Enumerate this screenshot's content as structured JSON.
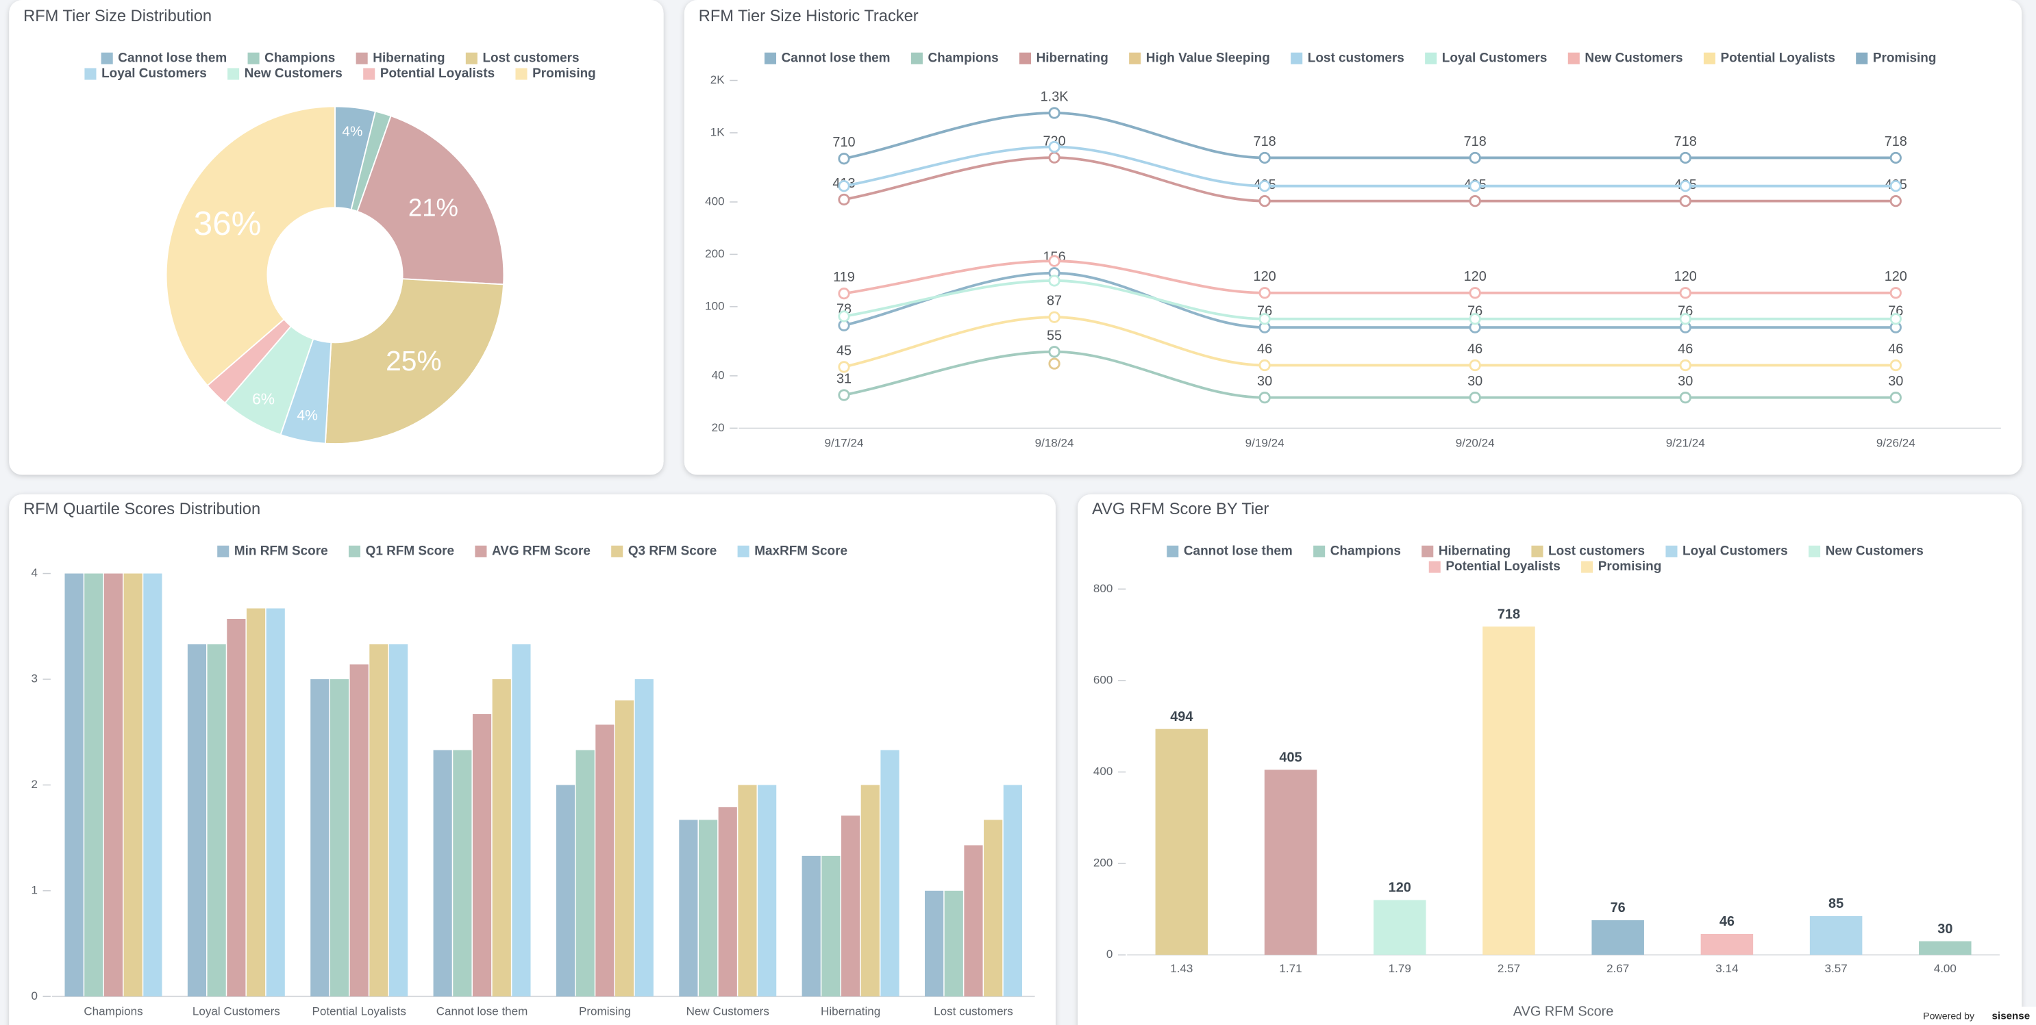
{
  "chart_data": [
    {
      "type": "pie",
      "title": "RFM Tier Size Distribution",
      "categories": [
        "Cannot lose them",
        "Champions",
        "Hibernating",
        "Lost customers",
        "Loyal Customers",
        "New Customers",
        "Potential Loyalists",
        "Promising"
      ],
      "values": [
        3.85,
        1.52,
        20.52,
        25.03,
        4.31,
        6.08,
        2.33,
        36.37
      ],
      "value_labels": [
        "4%",
        null,
        "21%",
        "25%",
        "4%",
        "6%",
        null,
        "36%"
      ],
      "colors": [
        "#98bcd0",
        "#a6cfc3",
        "#d3a6a6",
        "#e1cf96",
        "#b1d8ec",
        "#c8f0e2",
        "#f3bdbd",
        "#fbe6b2"
      ],
      "donut": true
    },
    {
      "type": "line",
      "title": "RFM Tier Size Historic Tracker",
      "categories": [
        "9/17/24",
        "9/18/24",
        "9/19/24",
        "9/20/24",
        "9/21/24",
        "9/26/24"
      ],
      "log_scale": true,
      "ylim": [
        20,
        2000
      ],
      "yticks": [
        20,
        40,
        100,
        200,
        400,
        {
          "value": 1000,
          "label": "1K"
        },
        {
          "value": 2000,
          "label": "2K"
        }
      ],
      "series": [
        {
          "name": "Cannot lose them",
          "color": "#8fb4c9",
          "values": [
            78,
            156,
            76,
            76,
            76,
            76
          ],
          "value_labels": [
            "78",
            "156",
            "76",
            "76",
            "76",
            "76"
          ]
        },
        {
          "name": "Champions",
          "color": "#a3cbbf",
          "values": [
            31,
            55,
            30,
            30,
            30,
            30
          ],
          "value_labels": [
            "31",
            "55",
            "30",
            "30",
            "30",
            "30"
          ]
        },
        {
          "name": "Hibernating",
          "color": "#d09a9a",
          "values": [
            413,
            720,
            405,
            405,
            405,
            405
          ],
          "value_labels": [
            "413",
            "720",
            "405",
            "405",
            "405",
            "405"
          ]
        },
        {
          "name": "High Value Sleeping",
          "color": "#e3c98f",
          "values": [
            null,
            47,
            null,
            null,
            null,
            null
          ]
        },
        {
          "name": "Lost customers",
          "color": "#a9d3ea",
          "values": [
            494,
            830,
            494,
            494,
            494,
            494
          ]
        },
        {
          "name": "Loyal Customers",
          "color": "#bfeee0",
          "values": [
            88,
            141,
            85,
            85,
            85,
            85
          ]
        },
        {
          "name": "New Customers",
          "color": "#f2b5b2",
          "values": [
            119,
            183,
            120,
            120,
            120,
            120
          ],
          "value_labels": [
            "119",
            null,
            "120",
            "120",
            "120",
            "120"
          ]
        },
        {
          "name": "Potential Loyalists",
          "color": "#fae3a4",
          "values": [
            45,
            87,
            46,
            46,
            46,
            46
          ],
          "value_labels": [
            "45",
            "87",
            "46",
            "46",
            "46",
            "46"
          ]
        },
        {
          "name": "Promising",
          "color": "#88aec4",
          "values": [
            710,
            1300,
            718,
            718,
            718,
            718
          ],
          "value_labels": [
            "710",
            "1.3K",
            "718",
            "718",
            "718",
            "718"
          ]
        }
      ]
    },
    {
      "type": "bar",
      "title": "RFM Quartile Scores Distribution",
      "categories": [
        "Champions",
        "Loyal Customers",
        "Potential Loyalists",
        "Cannot lose them",
        "Promising",
        "New Customers",
        "Hibernating",
        "Lost customers"
      ],
      "ylim": [
        0,
        4
      ],
      "yticks": [
        0,
        1,
        2,
        3,
        4
      ],
      "series": [
        {
          "name": "Min RFM Score",
          "color": "#9dbdd1",
          "values": [
            4,
            3.33,
            3,
            2.33,
            2,
            1.67,
            1.33,
            1
          ]
        },
        {
          "name": "Q1 RFM Score",
          "color": "#a9d0c4",
          "values": [
            4,
            3.33,
            3,
            2.33,
            2.33,
            1.67,
            1.33,
            1
          ]
        },
        {
          "name": "AVG RFM Score",
          "color": "#d3a5a5",
          "values": [
            4,
            3.57,
            3.14,
            2.67,
            2.57,
            1.79,
            1.71,
            1.43
          ]
        },
        {
          "name": "Q3 RFM Score",
          "color": "#e2cf96",
          "values": [
            4,
            3.67,
            3.33,
            3,
            2.8,
            2,
            2,
            1.67
          ]
        },
        {
          "name": "MaxRFM Score",
          "color": "#b0d9ee",
          "values": [
            4,
            3.67,
            3.33,
            3.33,
            3,
            2,
            2.33,
            2
          ]
        }
      ]
    },
    {
      "type": "bar",
      "title": "AVG RFM Score BY Tier",
      "x_label": "AVG RFM Score",
      "categories": [
        "1.43",
        "1.71",
        "1.79",
        "2.57",
        "2.67",
        "3.14",
        "3.57",
        "4.00"
      ],
      "ylim": [
        0,
        800
      ],
      "yticks": [
        0,
        200,
        400,
        600,
        800
      ],
      "data_labels": true,
      "series": [
        {
          "name": "Cannot lose them",
          "color": "#98bcd0",
          "values": [
            null,
            null,
            null,
            null,
            76,
            null,
            null,
            null
          ]
        },
        {
          "name": "Champions",
          "color": "#a6cfc3",
          "values": [
            null,
            null,
            null,
            null,
            null,
            null,
            null,
            30
          ]
        },
        {
          "name": "Hibernating",
          "color": "#d3a6a6",
          "values": [
            null,
            405,
            null,
            null,
            null,
            null,
            null,
            null
          ]
        },
        {
          "name": "Lost customers",
          "color": "#e1cf96",
          "values": [
            494,
            null,
            null,
            null,
            null,
            null,
            null,
            null
          ]
        },
        {
          "name": "Loyal Customers",
          "color": "#b1d8ec",
          "values": [
            null,
            null,
            null,
            null,
            null,
            null,
            85,
            null
          ]
        },
        {
          "name": "New Customers",
          "color": "#c8f0e2",
          "values": [
            null,
            null,
            120,
            null,
            null,
            null,
            null,
            null
          ]
        },
        {
          "name": "Potential Loyalists",
          "color": "#f3bdbd",
          "values": [
            null,
            null,
            null,
            null,
            null,
            46,
            null,
            null
          ]
        },
        {
          "name": "Promising",
          "color": "#fbe6b2",
          "values": [
            null,
            null,
            null,
            718,
            null,
            null,
            null,
            null
          ]
        }
      ]
    }
  ],
  "footer": {
    "text": "Powered by",
    "brand": "sisense"
  }
}
